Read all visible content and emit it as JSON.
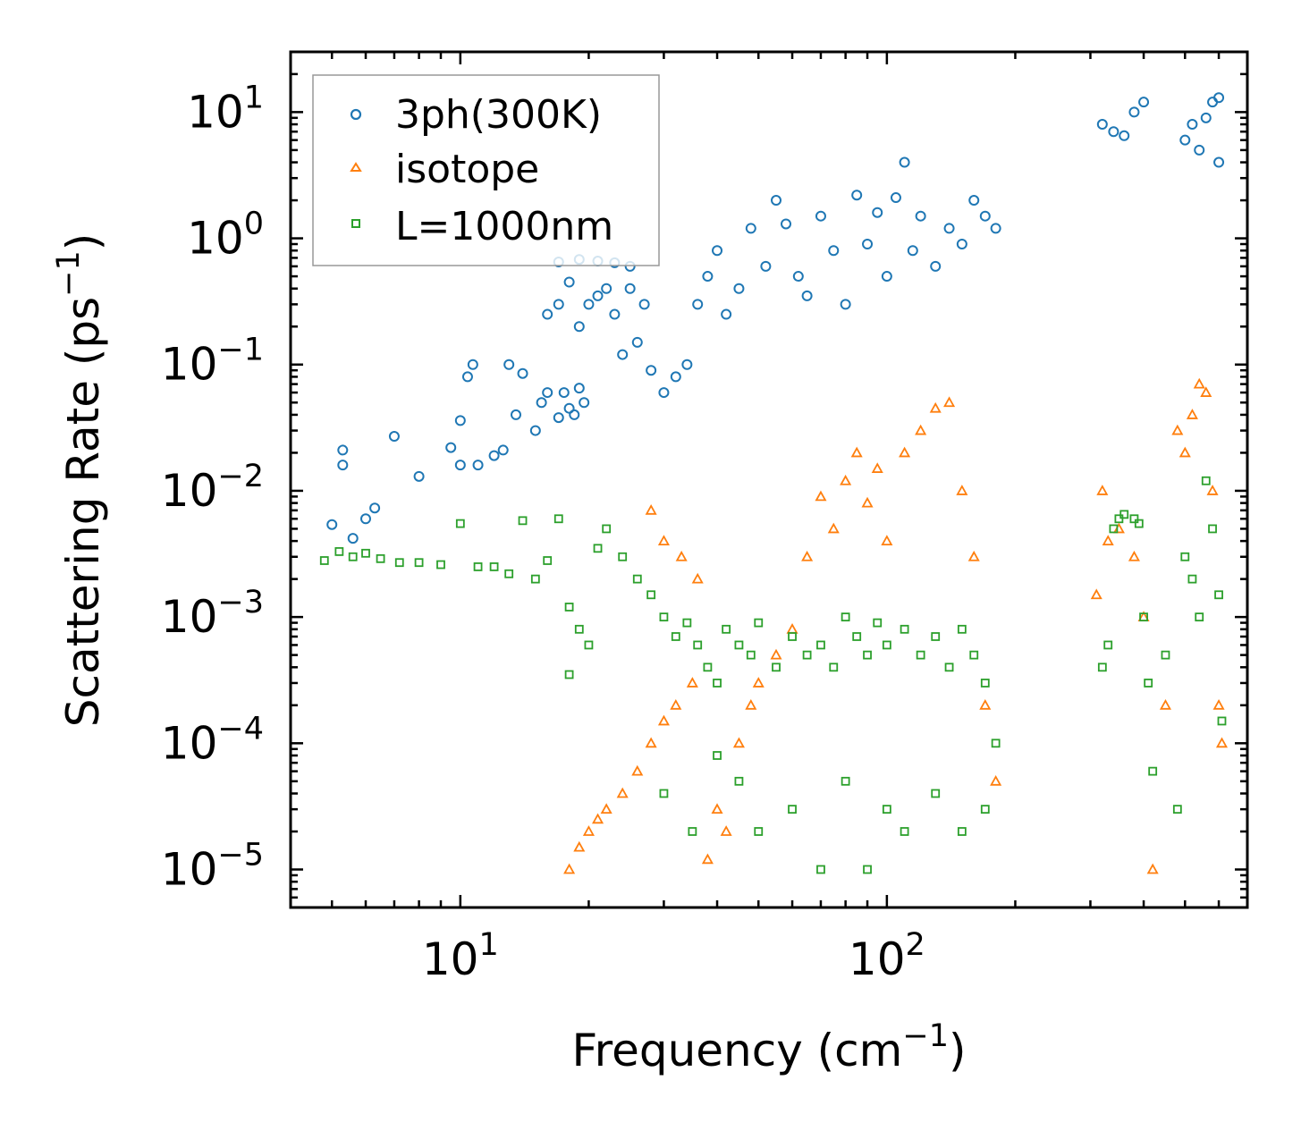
{
  "chart_data": {
    "type": "scatter",
    "xscale": "log",
    "yscale": "log",
    "xlabel": "Frequency (cm",
    "xlabel_sup": "−1",
    "xlabel_end": ")",
    "ylabel": "Scattering Rate (ps",
    "ylabel_sup": "−1",
    "ylabel_end": ")",
    "xlim": [
      4,
      700
    ],
    "ylim": [
      5e-06,
      30
    ],
    "x_ticks": [
      {
        "base": "10",
        "exp": "1",
        "value": 10
      },
      {
        "base": "10",
        "exp": "2",
        "value": 100
      }
    ],
    "y_ticks": [
      {
        "base": "10",
        "exp": "1",
        "value": 10
      },
      {
        "base": "10",
        "exp": "0",
        "value": 1
      },
      {
        "base": "10",
        "exp": "−1",
        "value": 0.1
      },
      {
        "base": "10",
        "exp": "−2",
        "value": 0.01
      },
      {
        "base": "10",
        "exp": "−3",
        "value": 0.001
      },
      {
        "base": "10",
        "exp": "−4",
        "value": 0.0001
      },
      {
        "base": "10",
        "exp": "−5",
        "value": 1e-05
      }
    ],
    "legend_position": "top-left",
    "series": [
      {
        "name": "3ph(300K)",
        "marker": "circle",
        "color": "#1f77b4",
        "points": [
          [
            5,
            0.0054
          ],
          [
            5.3,
            0.021
          ],
          [
            5.3,
            0.016
          ],
          [
            5.6,
            0.0042
          ],
          [
            6,
            0.006
          ],
          [
            6.3,
            0.0073
          ],
          [
            7,
            0.027
          ],
          [
            8,
            0.013
          ],
          [
            9.5,
            0.022
          ],
          [
            10,
            0.036
          ],
          [
            10,
            0.016
          ],
          [
            10.4,
            0.08
          ],
          [
            10.7,
            0.1
          ],
          [
            11,
            0.016
          ],
          [
            12,
            0.019
          ],
          [
            12.6,
            0.021
          ],
          [
            13,
            0.1
          ],
          [
            13.5,
            0.04
          ],
          [
            14,
            0.085
          ],
          [
            15,
            0.03
          ],
          [
            15.5,
            0.05
          ],
          [
            16,
            0.06
          ],
          [
            17,
            0.038
          ],
          [
            17.5,
            0.06
          ],
          [
            18,
            0.045
          ],
          [
            18.5,
            0.04
          ],
          [
            19,
            0.065
          ],
          [
            19.5,
            0.05
          ],
          [
            16,
            0.25
          ],
          [
            17,
            0.3
          ],
          [
            18,
            0.45
          ],
          [
            19,
            0.2
          ],
          [
            20,
            0.3
          ],
          [
            21,
            0.35
          ],
          [
            22,
            0.4
          ],
          [
            23,
            0.25
          ],
          [
            24,
            0.12
          ],
          [
            25,
            0.4
          ],
          [
            26,
            0.15
          ],
          [
            27,
            0.3
          ],
          [
            28,
            0.09
          ],
          [
            17,
            0.65
          ],
          [
            19,
            0.68
          ],
          [
            21,
            0.66
          ],
          [
            23,
            0.64
          ],
          [
            25,
            0.6
          ],
          [
            30,
            0.06
          ],
          [
            32,
            0.08
          ],
          [
            34,
            0.1
          ],
          [
            36,
            0.3
          ],
          [
            38,
            0.5
          ],
          [
            40,
            0.8
          ],
          [
            42,
            0.25
          ],
          [
            45,
            0.4
          ],
          [
            48,
            1.2
          ],
          [
            52,
            0.6
          ],
          [
            55,
            2.0
          ],
          [
            58,
            1.3
          ],
          [
            62,
            0.5
          ],
          [
            65,
            0.35
          ],
          [
            70,
            1.5
          ],
          [
            75,
            0.8
          ],
          [
            80,
            0.3
          ],
          [
            85,
            2.2
          ],
          [
            90,
            0.9
          ],
          [
            95,
            1.6
          ],
          [
            100,
            0.5
          ],
          [
            105,
            2.1
          ],
          [
            110,
            4.0
          ],
          [
            115,
            0.8
          ],
          [
            120,
            1.5
          ],
          [
            130,
            0.6
          ],
          [
            140,
            1.2
          ],
          [
            150,
            0.9
          ],
          [
            160,
            2.0
          ],
          [
            170,
            1.5
          ],
          [
            180,
            1.2
          ],
          [
            320,
            8.0
          ],
          [
            340,
            7.0
          ],
          [
            360,
            6.5
          ],
          [
            380,
            10
          ],
          [
            400,
            12
          ],
          [
            500,
            6
          ],
          [
            520,
            8
          ],
          [
            540,
            5
          ],
          [
            560,
            9
          ],
          [
            580,
            12
          ],
          [
            600,
            4
          ],
          [
            600,
            13
          ]
        ]
      },
      {
        "name": "isotope",
        "marker": "triangle",
        "color": "#ff7f0e",
        "points": [
          [
            18,
            1e-05
          ],
          [
            19,
            1.5e-05
          ],
          [
            20,
            2e-05
          ],
          [
            21,
            2.5e-05
          ],
          [
            22,
            3e-05
          ],
          [
            24,
            4e-05
          ],
          [
            26,
            6e-05
          ],
          [
            28,
            0.0001
          ],
          [
            30,
            0.00015
          ],
          [
            32,
            0.0002
          ],
          [
            35,
            0.0003
          ],
          [
            28,
            0.007
          ],
          [
            30,
            0.004
          ],
          [
            33,
            0.003
          ],
          [
            36,
            0.002
          ],
          [
            38,
            1.2e-05
          ],
          [
            40,
            3e-05
          ],
          [
            42,
            2e-05
          ],
          [
            45,
            0.0001
          ],
          [
            48,
            0.0002
          ],
          [
            50,
            0.0003
          ],
          [
            55,
            0.0005
          ],
          [
            60,
            0.0008
          ],
          [
            65,
            0.003
          ],
          [
            70,
            0.009
          ],
          [
            75,
            0.005
          ],
          [
            80,
            0.012
          ],
          [
            85,
            0.02
          ],
          [
            90,
            0.008
          ],
          [
            95,
            0.015
          ],
          [
            100,
            0.004
          ],
          [
            110,
            0.02
          ],
          [
            120,
            0.03
          ],
          [
            130,
            0.045
          ],
          [
            140,
            0.05
          ],
          [
            150,
            0.01
          ],
          [
            160,
            0.003
          ],
          [
            170,
            0.0002
          ],
          [
            180,
            5e-05
          ],
          [
            310,
            0.0015
          ],
          [
            320,
            0.01
          ],
          [
            330,
            0.004
          ],
          [
            350,
            0.005
          ],
          [
            380,
            0.003
          ],
          [
            400,
            0.001
          ],
          [
            420,
            1e-05
          ],
          [
            450,
            0.0002
          ],
          [
            480,
            0.03
          ],
          [
            500,
            0.02
          ],
          [
            520,
            0.04
          ],
          [
            540,
            0.07
          ],
          [
            560,
            0.06
          ],
          [
            580,
            0.01
          ],
          [
            600,
            0.0002
          ],
          [
            610,
            0.0001
          ]
        ]
      },
      {
        "name": "L=1000nm",
        "marker": "square",
        "color": "#2ca02c",
        "points": [
          [
            4.8,
            0.0028
          ],
          [
            5.2,
            0.0033
          ],
          [
            5.6,
            0.003
          ],
          [
            6,
            0.0032
          ],
          [
            6.5,
            0.0029
          ],
          [
            7.2,
            0.0027
          ],
          [
            8,
            0.0027
          ],
          [
            9,
            0.0026
          ],
          [
            10,
            0.0055
          ],
          [
            11,
            0.0025
          ],
          [
            12,
            0.0025
          ],
          [
            13,
            0.0022
          ],
          [
            14,
            0.0058
          ],
          [
            15,
            0.002
          ],
          [
            16,
            0.0028
          ],
          [
            17,
            0.006
          ],
          [
            18,
            0.0012
          ],
          [
            19,
            0.0008
          ],
          [
            20,
            0.0006
          ],
          [
            18,
            0.00035
          ],
          [
            21,
            0.0035
          ],
          [
            22,
            0.005
          ],
          [
            24,
            0.003
          ],
          [
            26,
            0.002
          ],
          [
            28,
            0.0015
          ],
          [
            30,
            0.001
          ],
          [
            32,
            0.0007
          ],
          [
            34,
            0.0009
          ],
          [
            36,
            0.0006
          ],
          [
            38,
            0.0004
          ],
          [
            40,
            0.0003
          ],
          [
            42,
            0.0008
          ],
          [
            45,
            0.0006
          ],
          [
            48,
            0.0005
          ],
          [
            50,
            0.0009
          ],
          [
            55,
            0.0004
          ],
          [
            60,
            0.0007
          ],
          [
            65,
            0.0005
          ],
          [
            70,
            0.0006
          ],
          [
            75,
            0.0004
          ],
          [
            80,
            0.001
          ],
          [
            85,
            0.0007
          ],
          [
            90,
            0.0005
          ],
          [
            95,
            0.0009
          ],
          [
            100,
            0.0006
          ],
          [
            110,
            0.0008
          ],
          [
            120,
            0.0005
          ],
          [
            130,
            0.0007
          ],
          [
            140,
            0.0004
          ],
          [
            150,
            0.0008
          ],
          [
            160,
            0.0005
          ],
          [
            170,
            0.0003
          ],
          [
            180,
            0.0001
          ],
          [
            30,
            4e-05
          ],
          [
            35,
            2e-05
          ],
          [
            40,
            8e-05
          ],
          [
            45,
            5e-05
          ],
          [
            50,
            2e-05
          ],
          [
            60,
            3e-05
          ],
          [
            70,
            1e-05
          ],
          [
            80,
            5e-05
          ],
          [
            90,
            1e-05
          ],
          [
            100,
            3e-05
          ],
          [
            110,
            2e-05
          ],
          [
            130,
            4e-05
          ],
          [
            150,
            2e-05
          ],
          [
            170,
            3e-05
          ],
          [
            320,
            0.0004
          ],
          [
            330,
            0.0006
          ],
          [
            340,
            0.005
          ],
          [
            350,
            0.006
          ],
          [
            360,
            0.0065
          ],
          [
            380,
            0.006
          ],
          [
            390,
            0.0055
          ],
          [
            400,
            0.001
          ],
          [
            410,
            0.0003
          ],
          [
            420,
            6e-05
          ],
          [
            450,
            0.0005
          ],
          [
            480,
            3e-05
          ],
          [
            500,
            0.003
          ],
          [
            520,
            0.002
          ],
          [
            540,
            0.001
          ],
          [
            560,
            0.012
          ],
          [
            580,
            0.005
          ],
          [
            600,
            0.0015
          ],
          [
            610,
            0.00015
          ]
        ]
      }
    ]
  }
}
